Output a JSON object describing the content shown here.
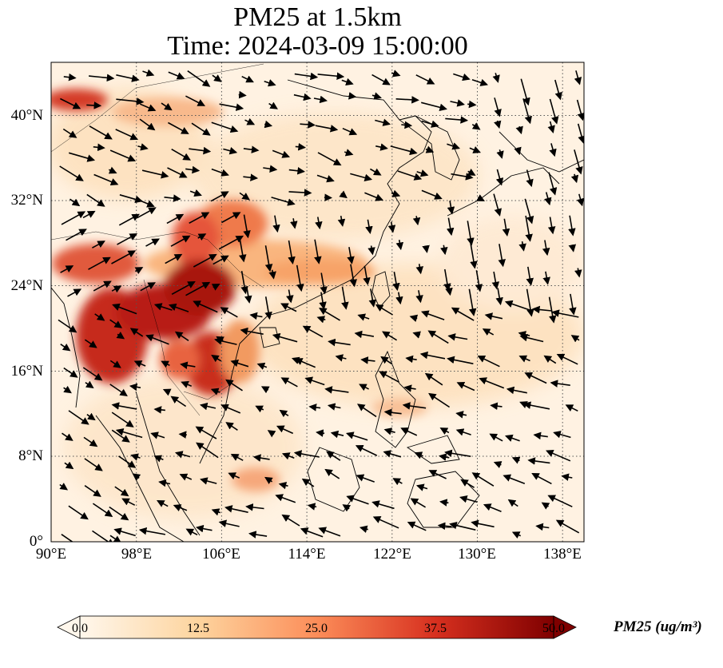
{
  "title": {
    "line1": "PM25 at 1.5km",
    "line2": "Time: 2024-03-09 15:00:00"
  },
  "axes": {
    "lat_labels": [
      "40°N",
      "32°N",
      "24°N",
      "16°N",
      "8°N",
      "0°"
    ],
    "lon_labels": [
      "90°E",
      "98°E",
      "106°E",
      "114°E",
      "122°E",
      "130°E",
      "138°E"
    ],
    "lat_values": [
      40,
      32,
      24,
      16,
      8,
      0
    ],
    "lon_values": [
      90,
      98,
      106,
      114,
      122,
      130,
      138
    ],
    "lat_range": [
      0,
      45
    ],
    "lon_range": [
      90,
      140
    ],
    "gridlines": "dotted"
  },
  "colorbar": {
    "label": "PM25 (ug/m³)",
    "ticks": [
      "0.0",
      "12.5",
      "25.0",
      "37.5",
      "50.0"
    ],
    "min": 0,
    "max": 50,
    "colormap": "OrRd",
    "extend": "both",
    "colors": [
      "#fff7ec",
      "#fdd49e",
      "#fc8d59",
      "#d7301f",
      "#7f0000"
    ]
  }
}
